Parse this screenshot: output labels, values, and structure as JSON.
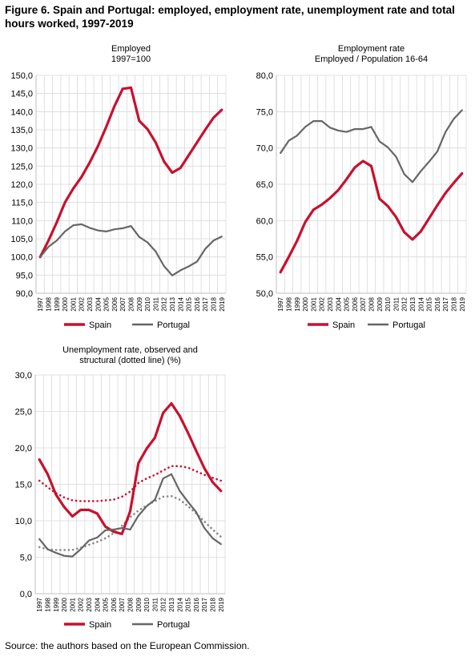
{
  "figure": {
    "title": "Figure 6. Spain and Portugal: employed, employment rate, unemployment rate and total hours worked, 1997-2019",
    "source": "Source: the authors based on the European Commission."
  },
  "colors": {
    "spain": "#c8102e",
    "portugal": "#666666",
    "grid": "#d9d9d9",
    "axis": "#bfbfbf"
  },
  "chart_data": [
    {
      "type": "line",
      "title": "Employed",
      "subtitle": "1997=100",
      "x": [
        "1997",
        "1998",
        "1999",
        "2000",
        "2001",
        "2002",
        "2003",
        "2004",
        "2005",
        "2006",
        "2007",
        "2008",
        "2009",
        "2010",
        "2011",
        "2012",
        "2013",
        "2014",
        "2015",
        "2016",
        "2017",
        "2018",
        "2019"
      ],
      "ylim": [
        90,
        150
      ],
      "yticks": [
        "90,0",
        "95,0",
        "100,0",
        "105,0",
        "110,0",
        "115,0",
        "120,0",
        "125,0",
        "130,0",
        "135,0",
        "140,0",
        "145,0",
        "150,0"
      ],
      "grid": true,
      "legend_position": "bottom",
      "series": [
        {
          "name": "Spain",
          "color": "#c8102e",
          "values": [
            100.0,
            104.5,
            109.5,
            115.0,
            118.8,
            122.0,
            126.0,
            130.5,
            135.8,
            141.5,
            146.3,
            146.6,
            137.5,
            135.2,
            131.5,
            126.3,
            123.2,
            124.5,
            128.0,
            131.5,
            135.0,
            138.3,
            140.5
          ]
        },
        {
          "name": "Portugal",
          "color": "#666666",
          "values": [
            100.0,
            102.8,
            104.5,
            107.0,
            108.7,
            109.0,
            108.0,
            107.3,
            107.0,
            107.6,
            107.9,
            108.5,
            105.5,
            104.0,
            101.5,
            97.5,
            94.9,
            96.3,
            97.4,
            98.7,
            102.2,
            104.5,
            105.6
          ]
        }
      ]
    },
    {
      "type": "line",
      "title": "Employment rate",
      "subtitle": "Employed / Population 16-64",
      "x": [
        "1997",
        "1998",
        "1999",
        "2000",
        "2001",
        "2002",
        "2003",
        "2004",
        "2005",
        "2006",
        "2007",
        "2008",
        "2009",
        "2010",
        "2011",
        "2012",
        "2013",
        "2014",
        "2015",
        "2016",
        "2017",
        "2018",
        "2019"
      ],
      "ylim": [
        50,
        80
      ],
      "yticks": [
        "50,0",
        "55,0",
        "60,0",
        "65,0",
        "70,0",
        "75,0",
        "80,0"
      ],
      "grid": true,
      "legend_position": "bottom",
      "series": [
        {
          "name": "Spain",
          "color": "#c8102e",
          "values": [
            52.9,
            55.0,
            57.2,
            59.8,
            61.5,
            62.2,
            63.1,
            64.2,
            65.7,
            67.3,
            68.2,
            67.5,
            63.0,
            62.0,
            60.5,
            58.4,
            57.4,
            58.5,
            60.3,
            62.1,
            63.8,
            65.2,
            66.5
          ]
        },
        {
          "name": "Portugal",
          "color": "#666666",
          "values": [
            69.3,
            71.0,
            71.7,
            72.9,
            73.7,
            73.7,
            72.8,
            72.4,
            72.2,
            72.6,
            72.6,
            72.9,
            70.9,
            70.1,
            68.8,
            66.4,
            65.3,
            66.8,
            68.1,
            69.5,
            72.2,
            74.0,
            75.2
          ]
        }
      ]
    },
    {
      "type": "line",
      "title": "Unemployment rate, observed and",
      "subtitle": "structural (dotted line) (%)",
      "x": [
        "1997",
        "1998",
        "1999",
        "2000",
        "2001",
        "2002",
        "2003",
        "2004",
        "2005",
        "2006",
        "2007",
        "2008",
        "2009",
        "2010",
        "2011",
        "2012",
        "2013",
        "2014",
        "2015",
        "2016",
        "2017",
        "2018",
        "2019"
      ],
      "ylim": [
        0,
        30
      ],
      "yticks": [
        "0,0",
        "5,0",
        "10,0",
        "15,0",
        "20,0",
        "25,0",
        "30,0"
      ],
      "grid": true,
      "legend_position": "bottom",
      "series": [
        {
          "name": "Spain",
          "color": "#c8102e",
          "style": "solid",
          "values": [
            18.4,
            16.4,
            13.6,
            11.9,
            10.6,
            11.5,
            11.5,
            11.0,
            9.2,
            8.5,
            8.2,
            11.3,
            17.9,
            19.9,
            21.4,
            24.8,
            26.1,
            24.4,
            22.1,
            19.6,
            17.2,
            15.3,
            14.1
          ]
        },
        {
          "name": "Portugal",
          "color": "#666666",
          "style": "solid",
          "values": [
            7.5,
            6.1,
            5.6,
            5.2,
            5.1,
            6.1,
            7.3,
            7.7,
            8.7,
            8.8,
            9.0,
            8.8,
            10.7,
            12.0,
            12.9,
            15.8,
            16.4,
            14.1,
            12.6,
            11.2,
            9.0,
            7.6,
            6.8
          ]
        },
        {
          "name": "",
          "color": "#c8102e",
          "style": "dotted",
          "values": [
            15.5,
            14.6,
            13.8,
            13.2,
            12.8,
            12.7,
            12.7,
            12.7,
            12.8,
            12.9,
            13.3,
            14.0,
            15.2,
            15.8,
            16.3,
            16.9,
            17.5,
            17.5,
            17.3,
            16.8,
            16.3,
            15.9,
            15.5
          ]
        },
        {
          "name": "",
          "color": "#888888",
          "style": "dotted",
          "values": [
            6.4,
            6.1,
            6.0,
            6.0,
            6.0,
            6.3,
            6.7,
            7.1,
            7.6,
            8.3,
            9.3,
            10.5,
            11.4,
            12.1,
            12.7,
            13.3,
            13.4,
            12.9,
            12.0,
            11.0,
            9.9,
            8.8,
            7.8
          ]
        }
      ]
    }
  ]
}
